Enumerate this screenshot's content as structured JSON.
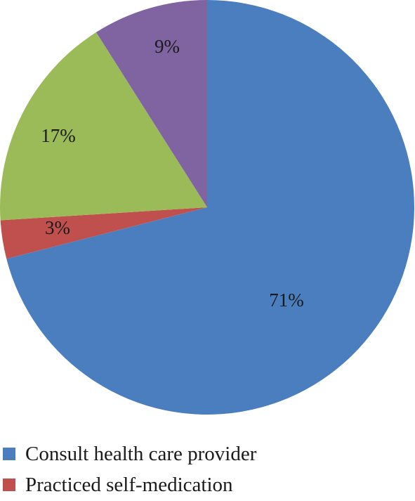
{
  "chart_data": {
    "type": "pie",
    "slices": [
      {
        "label": "Consult health care provider",
        "value": 71,
        "display": "71%",
        "color": "#4a7ebf"
      },
      {
        "label": "Practiced self-medication",
        "value": 3,
        "display": "3%",
        "color": "#c0504d"
      },
      {
        "label": "",
        "value": 17,
        "display": "17%",
        "color": "#9bbb59"
      },
      {
        "label": "",
        "value": 9,
        "display": "9%",
        "color": "#8064a2"
      }
    ],
    "legend": [
      {
        "label": "Consult health care provider",
        "color": "#4a7ebf"
      },
      {
        "label": "Practiced self-medication",
        "color": "#c0504d"
      }
    ],
    "legend_position": "bottom-left"
  }
}
